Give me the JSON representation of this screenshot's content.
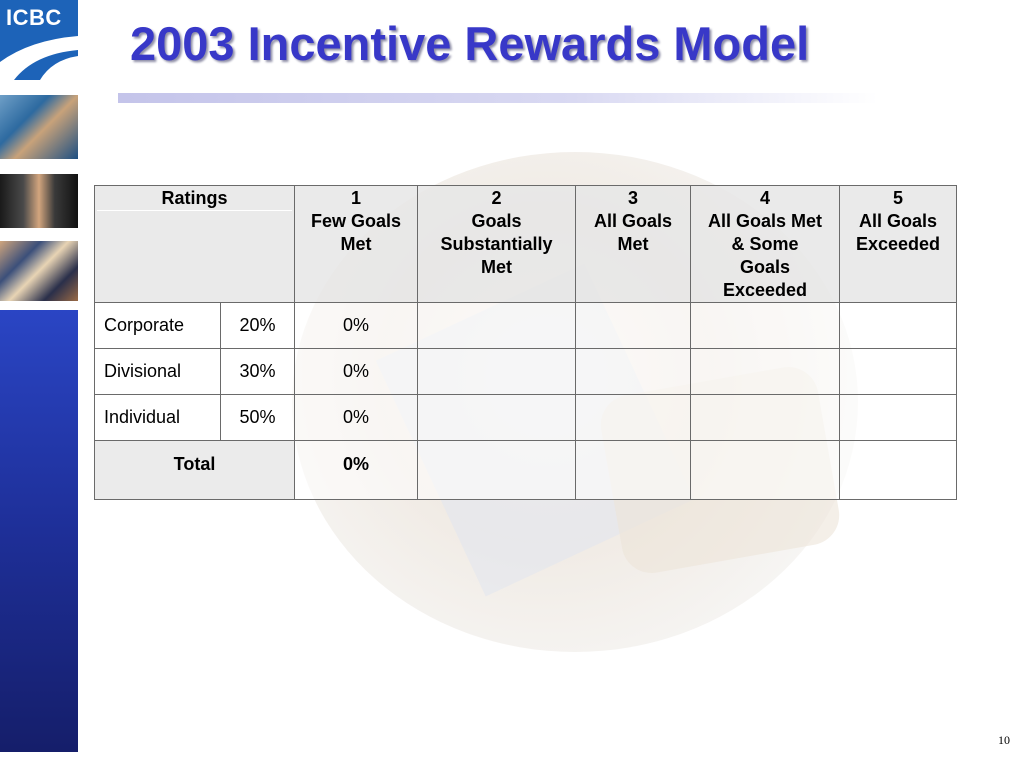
{
  "logo": {
    "text": "ICBC",
    "color": "#1d63b8"
  },
  "slide": {
    "title": "2003 Incentive Rewards Model",
    "title_color": "#3838c8",
    "page_number": "10"
  },
  "table": {
    "ratings_header": "Ratings",
    "levels": [
      {
        "number": "1",
        "label": [
          "Few Goals",
          "Met"
        ]
      },
      {
        "number": "2",
        "label": [
          "Goals",
          "Substantially",
          "Met"
        ]
      },
      {
        "number": "3",
        "label": [
          "All Goals",
          "Met"
        ]
      },
      {
        "number": "4",
        "label": [
          "All Goals Met",
          "& Some",
          "Goals",
          "Exceeded"
        ]
      },
      {
        "number": "5",
        "label": [
          "All Goals",
          "Exceeded"
        ]
      }
    ],
    "rows": [
      {
        "name": "Corporate",
        "weight": "20%",
        "level1": "0%"
      },
      {
        "name": "Divisional",
        "weight": "30%",
        "level1": "0%"
      },
      {
        "name": "Individual",
        "weight": "50%",
        "level1": "0%"
      }
    ],
    "total": {
      "label": "Total",
      "level1": "0%"
    }
  }
}
